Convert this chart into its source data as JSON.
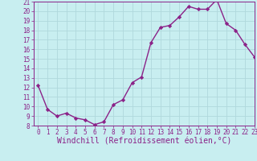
{
  "x": [
    0,
    1,
    2,
    3,
    4,
    5,
    6,
    7,
    8,
    9,
    10,
    11,
    12,
    13,
    14,
    15,
    16,
    17,
    18,
    19,
    20,
    21,
    22,
    23
  ],
  "y": [
    12.2,
    9.7,
    9.0,
    9.3,
    8.8,
    8.6,
    8.1,
    8.4,
    10.2,
    10.7,
    12.5,
    13.1,
    16.7,
    18.3,
    18.5,
    19.4,
    20.5,
    20.2,
    20.2,
    21.2,
    18.7,
    18.0,
    16.5,
    15.2
  ],
  "line_color": "#8b2288",
  "marker": "D",
  "marker_size": 2.2,
  "bg_color": "#c8eef0",
  "grid_color": "#b0d8dc",
  "xlabel": "Windchill (Refroidissement éolien,°C)",
  "ylim_min": 8,
  "ylim_max": 21,
  "xlim_min": -0.5,
  "xlim_max": 23,
  "yticks": [
    8,
    9,
    10,
    11,
    12,
    13,
    14,
    15,
    16,
    17,
    18,
    19,
    20,
    21
  ],
  "xticks": [
    0,
    1,
    2,
    3,
    4,
    5,
    6,
    7,
    8,
    9,
    10,
    11,
    12,
    13,
    14,
    15,
    16,
    17,
    18,
    19,
    20,
    21,
    22,
    23
  ],
  "tick_color": "#8b2288",
  "tick_fontsize": 5.5,
  "xlabel_fontsize": 7.0,
  "line_width": 1.0
}
